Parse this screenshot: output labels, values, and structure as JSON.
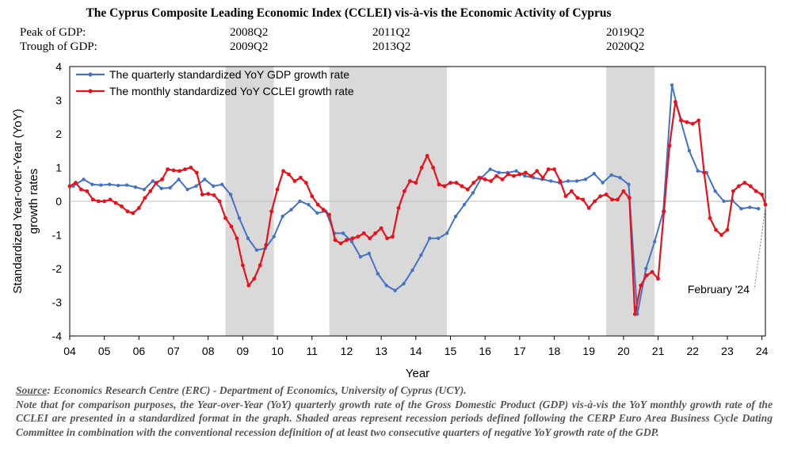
{
  "header": {
    "title": "The Cyprus Composite Leading Economic Index (CCLEI) vis-à-vis the Economic Activity of Cyprus",
    "peak_label": "Peak of GDP:",
    "trough_label": "Trough of GDP:",
    "peaks": [
      "2008Q2",
      "2011Q2",
      "2019Q2"
    ],
    "troughs": [
      "2009Q2",
      "2013Q2",
      "2020Q2"
    ]
  },
  "chart_data": {
    "type": "line",
    "title": "The Cyprus Composite Leading Economic Index (CCLEI) vis-à-vis the Economic Activity of Cyprus",
    "xlabel": "Year",
    "ylabel": "Standardized Year-over-Year (YoY) growth rates",
    "xlim": [
      2004.0,
      2024.1
    ],
    "ylim": [
      -4,
      4
    ],
    "x_ticks": [
      "04",
      "05",
      "06",
      "07",
      "08",
      "09",
      "10",
      "11",
      "12",
      "13",
      "14",
      "15",
      "16",
      "17",
      "18",
      "19",
      "20",
      "21",
      "22",
      "23",
      "24"
    ],
    "y_ticks": [
      4,
      3,
      2,
      1,
      0,
      -1,
      -2,
      -3,
      -4
    ],
    "recessions": [
      [
        2008.5,
        2009.9
      ],
      [
        2011.5,
        2014.9
      ],
      [
        2019.5,
        2020.9
      ]
    ],
    "annotation": "February '24",
    "annotation_point": [
      2024.1,
      -0.1
    ],
    "series": [
      {
        "name": "The quarterly standardized YoY GDP growth rate",
        "color": "#4472C4",
        "points": [
          [
            2004.1,
            0.45
          ],
          [
            2004.4,
            0.65
          ],
          [
            2004.65,
            0.5
          ],
          [
            2004.9,
            0.48
          ],
          [
            2005.15,
            0.5
          ],
          [
            2005.4,
            0.47
          ],
          [
            2005.65,
            0.48
          ],
          [
            2005.9,
            0.42
          ],
          [
            2006.15,
            0.35
          ],
          [
            2006.4,
            0.6
          ],
          [
            2006.65,
            0.38
          ],
          [
            2006.9,
            0.4
          ],
          [
            2007.15,
            0.65
          ],
          [
            2007.4,
            0.35
          ],
          [
            2007.65,
            0.45
          ],
          [
            2007.9,
            0.65
          ],
          [
            2008.15,
            0.45
          ],
          [
            2008.4,
            0.5
          ],
          [
            2008.65,
            0.2
          ],
          [
            2008.9,
            -0.5
          ],
          [
            2009.15,
            -1.1
          ],
          [
            2009.4,
            -1.45
          ],
          [
            2009.65,
            -1.4
          ],
          [
            2009.9,
            -1.05
          ],
          [
            2010.15,
            -0.45
          ],
          [
            2010.4,
            -0.25
          ],
          [
            2010.65,
            0.0
          ],
          [
            2010.9,
            -0.1
          ],
          [
            2011.15,
            -0.35
          ],
          [
            2011.4,
            -0.3
          ],
          [
            2011.65,
            -0.95
          ],
          [
            2011.9,
            -0.95
          ],
          [
            2012.15,
            -1.2
          ],
          [
            2012.4,
            -1.65
          ],
          [
            2012.65,
            -1.55
          ],
          [
            2012.9,
            -2.15
          ],
          [
            2013.15,
            -2.5
          ],
          [
            2013.4,
            -2.65
          ],
          [
            2013.65,
            -2.45
          ],
          [
            2013.9,
            -2.05
          ],
          [
            2014.15,
            -1.6
          ],
          [
            2014.4,
            -1.1
          ],
          [
            2014.65,
            -1.1
          ],
          [
            2014.9,
            -0.95
          ],
          [
            2015.15,
            -0.45
          ],
          [
            2015.4,
            -0.1
          ],
          [
            2015.65,
            0.25
          ],
          [
            2015.9,
            0.7
          ],
          [
            2016.15,
            0.95
          ],
          [
            2016.4,
            0.85
          ],
          [
            2016.65,
            0.85
          ],
          [
            2016.9,
            0.9
          ],
          [
            2017.15,
            0.75
          ],
          [
            2017.4,
            0.7
          ],
          [
            2017.65,
            0.65
          ],
          [
            2017.9,
            0.6
          ],
          [
            2018.15,
            0.55
          ],
          [
            2018.4,
            0.6
          ],
          [
            2018.65,
            0.6
          ],
          [
            2018.9,
            0.65
          ],
          [
            2019.15,
            0.82
          ],
          [
            2019.4,
            0.55
          ],
          [
            2019.65,
            0.78
          ],
          [
            2019.9,
            0.7
          ],
          [
            2020.15,
            0.5
          ],
          [
            2020.4,
            -3.35
          ],
          [
            2020.65,
            -2.0
          ],
          [
            2020.9,
            -1.2
          ],
          [
            2021.15,
            -0.3
          ],
          [
            2021.4,
            3.45
          ],
          [
            2021.65,
            2.4
          ],
          [
            2021.9,
            1.5
          ],
          [
            2022.15,
            0.9
          ],
          [
            2022.4,
            0.85
          ],
          [
            2022.65,
            0.3
          ],
          [
            2022.9,
            0.0
          ],
          [
            2023.15,
            0.02
          ],
          [
            2023.4,
            -0.22
          ],
          [
            2023.65,
            -0.18
          ],
          [
            2023.9,
            -0.22
          ]
        ]
      },
      {
        "name": "The monthly standardized YoY CCLEI growth rate",
        "color": "#E8111A",
        "points": [
          [
            2004.0,
            0.45
          ],
          [
            2004.17,
            0.55
          ],
          [
            2004.33,
            0.35
          ],
          [
            2004.5,
            0.3
          ],
          [
            2004.67,
            0.05
          ],
          [
            2004.83,
            0.0
          ],
          [
            2005.0,
            0.0
          ],
          [
            2005.17,
            0.05
          ],
          [
            2005.33,
            -0.05
          ],
          [
            2005.5,
            -0.15
          ],
          [
            2005.67,
            -0.3
          ],
          [
            2005.83,
            -0.35
          ],
          [
            2006.0,
            -0.2
          ],
          [
            2006.17,
            0.1
          ],
          [
            2006.33,
            0.3
          ],
          [
            2006.5,
            0.55
          ],
          [
            2006.67,
            0.65
          ],
          [
            2006.83,
            0.95
          ],
          [
            2007.0,
            0.92
          ],
          [
            2007.17,
            0.9
          ],
          [
            2007.33,
            0.95
          ],
          [
            2007.5,
            1.0
          ],
          [
            2007.67,
            0.85
          ],
          [
            2007.83,
            0.2
          ],
          [
            2008.0,
            0.22
          ],
          [
            2008.17,
            0.18
          ],
          [
            2008.33,
            0.0
          ],
          [
            2008.5,
            -0.5
          ],
          [
            2008.67,
            -0.75
          ],
          [
            2008.83,
            -1.1
          ],
          [
            2009.0,
            -1.9
          ],
          [
            2009.17,
            -2.5
          ],
          [
            2009.33,
            -2.3
          ],
          [
            2009.5,
            -1.9
          ],
          [
            2009.67,
            -1.3
          ],
          [
            2009.83,
            -0.3
          ],
          [
            2010.0,
            0.35
          ],
          [
            2010.17,
            0.9
          ],
          [
            2010.33,
            0.8
          ],
          [
            2010.5,
            0.6
          ],
          [
            2010.67,
            0.7
          ],
          [
            2010.83,
            0.55
          ],
          [
            2011.0,
            0.15
          ],
          [
            2011.17,
            -0.1
          ],
          [
            2011.33,
            -0.25
          ],
          [
            2011.5,
            -0.4
          ],
          [
            2011.67,
            -1.15
          ],
          [
            2011.83,
            -1.25
          ],
          [
            2012.0,
            -1.15
          ],
          [
            2012.17,
            -1.1
          ],
          [
            2012.33,
            -1.05
          ],
          [
            2012.5,
            -0.95
          ],
          [
            2012.67,
            -1.1
          ],
          [
            2012.83,
            -0.95
          ],
          [
            2013.0,
            -0.8
          ],
          [
            2013.17,
            -1.1
          ],
          [
            2013.33,
            -1.05
          ],
          [
            2013.5,
            -0.2
          ],
          [
            2013.67,
            0.3
          ],
          [
            2013.83,
            0.6
          ],
          [
            2014.0,
            0.55
          ],
          [
            2014.17,
            1.0
          ],
          [
            2014.33,
            1.35
          ],
          [
            2014.5,
            1.0
          ],
          [
            2014.67,
            0.5
          ],
          [
            2014.83,
            0.45
          ],
          [
            2015.0,
            0.55
          ],
          [
            2015.17,
            0.55
          ],
          [
            2015.33,
            0.45
          ],
          [
            2015.5,
            0.35
          ],
          [
            2015.67,
            0.55
          ],
          [
            2015.83,
            0.7
          ],
          [
            2016.0,
            0.65
          ],
          [
            2016.17,
            0.6
          ],
          [
            2016.33,
            0.75
          ],
          [
            2016.5,
            0.65
          ],
          [
            2016.67,
            0.8
          ],
          [
            2016.83,
            0.75
          ],
          [
            2017.0,
            0.8
          ],
          [
            2017.17,
            0.85
          ],
          [
            2017.33,
            0.75
          ],
          [
            2017.5,
            0.9
          ],
          [
            2017.67,
            0.7
          ],
          [
            2017.83,
            0.95
          ],
          [
            2018.0,
            0.95
          ],
          [
            2018.17,
            0.6
          ],
          [
            2018.33,
            0.15
          ],
          [
            2018.5,
            0.3
          ],
          [
            2018.67,
            0.1
          ],
          [
            2018.83,
            0.05
          ],
          [
            2019.0,
            -0.2
          ],
          [
            2019.17,
            0.0
          ],
          [
            2019.33,
            0.15
          ],
          [
            2019.5,
            0.2
          ],
          [
            2019.67,
            0.05
          ],
          [
            2019.83,
            0.05
          ],
          [
            2020.0,
            0.3
          ],
          [
            2020.17,
            0.1
          ],
          [
            2020.33,
            -3.35
          ],
          [
            2020.5,
            -2.5
          ],
          [
            2020.67,
            -2.2
          ],
          [
            2020.83,
            -2.1
          ],
          [
            2021.0,
            -2.3
          ],
          [
            2021.17,
            -0.3
          ],
          [
            2021.33,
            1.65
          ],
          [
            2021.5,
            2.95
          ],
          [
            2021.67,
            2.4
          ],
          [
            2021.83,
            2.35
          ],
          [
            2022.0,
            2.3
          ],
          [
            2022.17,
            2.4
          ],
          [
            2022.33,
            0.85
          ],
          [
            2022.5,
            -0.5
          ],
          [
            2022.67,
            -0.85
          ],
          [
            2022.83,
            -1.0
          ],
          [
            2023.0,
            -0.85
          ],
          [
            2023.17,
            0.3
          ],
          [
            2023.33,
            0.45
          ],
          [
            2023.5,
            0.55
          ],
          [
            2023.67,
            0.45
          ],
          [
            2023.83,
            0.3
          ],
          [
            2024.0,
            0.2
          ],
          [
            2024.1,
            -0.1
          ]
        ]
      }
    ]
  },
  "source": {
    "label": "Source",
    "text": ": Economics Research Centre (ERC) - Department of Economics, University of Cyprus (UCY).",
    "note": "Note that for comparison purposes, the Year-over-Year (YoY) quarterly growth rate of the Gross Domestic Product (GDP) vis-à-vis the YoY monthly growth rate of the CCLEI are presented in a standardized format in the graph. Shaded areas represent recession periods defined following the CERP Euro Area Business Cycle Dating Committee in combination with the conventional recession definition of at least two consecutive quarters of negative YoY growth rate of the GDP."
  }
}
